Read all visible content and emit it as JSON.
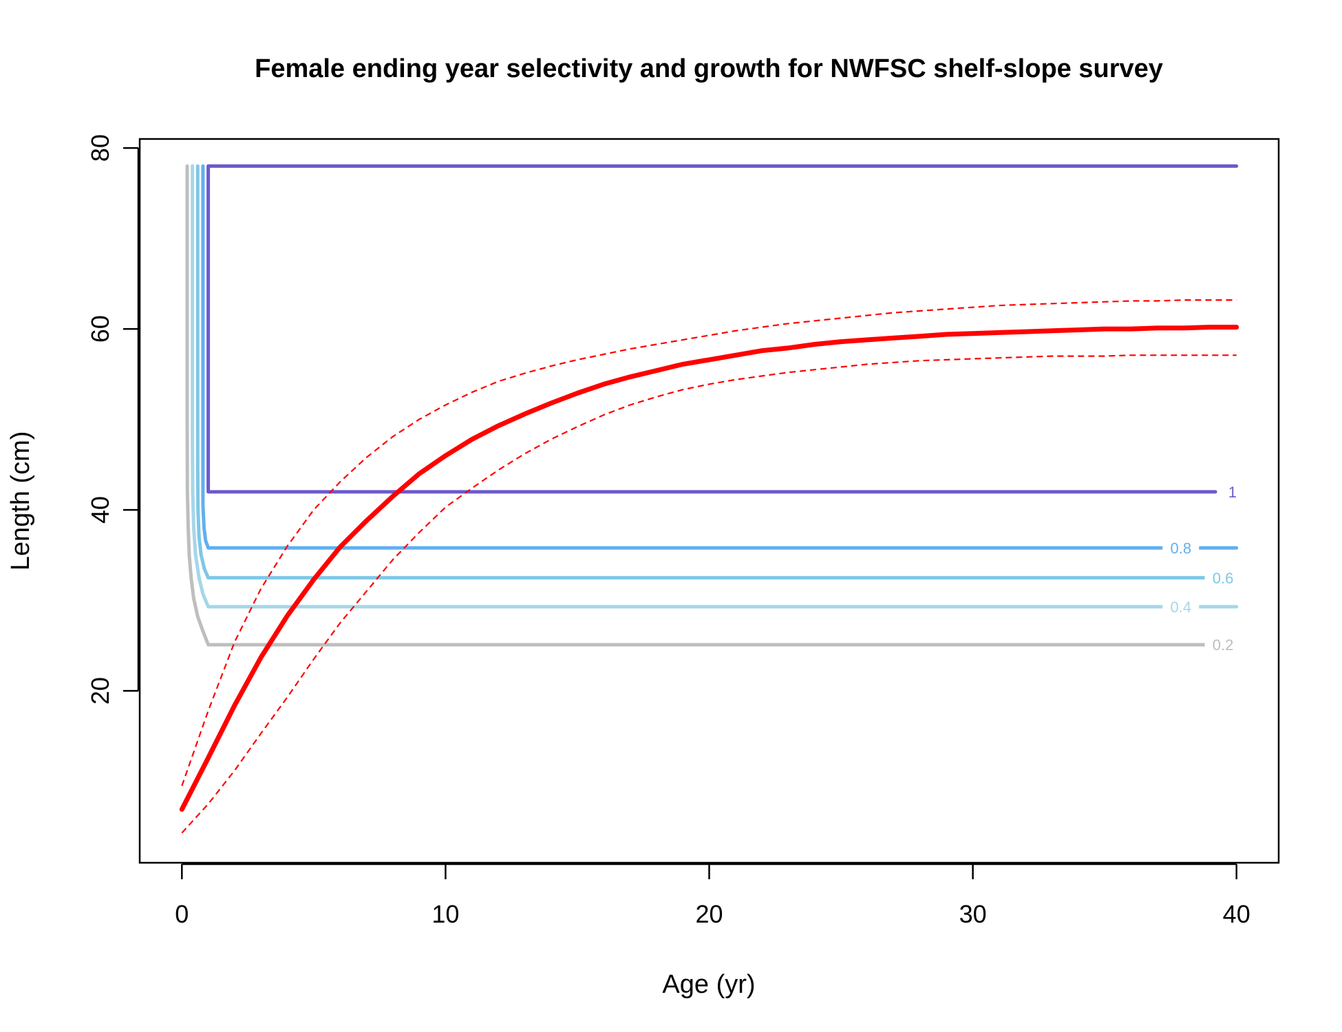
{
  "chart_data": {
    "type": "line",
    "title": "Female ending year selectivity and growth for NWFSC shelf-slope survey",
    "xlabel": "Age (yr)",
    "ylabel": "Length (cm)",
    "xlim": [
      -1.6,
      41.6
    ],
    "ylim": [
      1.0,
      81.0
    ],
    "xticks": [
      0,
      10,
      20,
      30,
      40
    ],
    "yticks": [
      20,
      40,
      60,
      80
    ],
    "xtick_labels": [
      "0",
      "10",
      "20",
      "30",
      "40"
    ],
    "ytick_labels": [
      "20",
      "40",
      "60",
      "80"
    ],
    "grid": false,
    "legend": "none",
    "selectivity_contours": [
      {
        "label": "0.2",
        "color": "#bebebe",
        "label_at": [
          38.9,
          25.1
        ],
        "points": [
          [
            38.9,
            25.1
          ],
          [
            1.0,
            25.1
          ],
          [
            0.8,
            26.6
          ],
          [
            0.6,
            28.2
          ],
          [
            0.45,
            30.2
          ],
          [
            0.35,
            32.5
          ],
          [
            0.28,
            35.0
          ],
          [
            0.24,
            38.0
          ],
          [
            0.21,
            42.0
          ],
          [
            0.2,
            50.0
          ],
          [
            0.2,
            78.0
          ]
        ]
      },
      {
        "label": "0.4",
        "color": "#a6d6e8",
        "label_at": [
          37.3,
          29.3
        ],
        "points": [
          [
            40.0,
            29.3
          ],
          [
            1.0,
            29.3
          ],
          [
            0.8,
            30.7
          ],
          [
            0.65,
            32.5
          ],
          [
            0.52,
            35.0
          ],
          [
            0.45,
            38.0
          ],
          [
            0.41,
            42.0
          ],
          [
            0.4,
            48.0
          ],
          [
            0.4,
            78.0
          ]
        ]
      },
      {
        "label": "0.6",
        "color": "#7ec8e6",
        "label_at": [
          38.9,
          32.5
        ],
        "points": [
          [
            38.9,
            32.5
          ],
          [
            1.0,
            32.5
          ],
          [
            0.85,
            33.5
          ],
          [
            0.73,
            35.0
          ],
          [
            0.65,
            37.0
          ],
          [
            0.61,
            40.0
          ],
          [
            0.6,
            45.0
          ],
          [
            0.6,
            78.0
          ]
        ]
      },
      {
        "label": "0.8",
        "color": "#62b0ee",
        "label_at": [
          37.3,
          35.8
        ],
        "points": [
          [
            40.0,
            35.8
          ],
          [
            1.0,
            35.8
          ],
          [
            0.9,
            36.6
          ],
          [
            0.84,
            38.0
          ],
          [
            0.8,
            40.5
          ],
          [
            0.8,
            78.0
          ]
        ]
      },
      {
        "label": "1",
        "color": "#6a5acd",
        "label_at": [
          39.6,
          42.0
        ],
        "points": [
          [
            39.2,
            42.0
          ],
          [
            1.0,
            42.0
          ],
          [
            1.0,
            78.0
          ],
          [
            40.0,
            78.0
          ]
        ]
      }
    ],
    "growth": {
      "color": "#ff0000",
      "mean": {
        "x": [
          0,
          1,
          2,
          3,
          4,
          5,
          6,
          7,
          8,
          9,
          10,
          11,
          12,
          13,
          14,
          15,
          16,
          17,
          18,
          19,
          20,
          21,
          22,
          23,
          24,
          25,
          26,
          27,
          28,
          29,
          30,
          31,
          32,
          33,
          34,
          35,
          36,
          37,
          38,
          39,
          40
        ],
        "y": [
          6.9,
          12.6,
          18.4,
          23.7,
          28.3,
          32.3,
          35.9,
          38.8,
          41.5,
          44.0,
          46.0,
          47.8,
          49.3,
          50.6,
          51.8,
          52.9,
          53.9,
          54.7,
          55.4,
          56.1,
          56.6,
          57.1,
          57.6,
          57.9,
          58.3,
          58.6,
          58.8,
          59.0,
          59.2,
          59.4,
          59.5,
          59.6,
          59.7,
          59.8,
          59.9,
          60.0,
          60.0,
          60.1,
          60.1,
          60.2,
          60.2
        ]
      },
      "upper": {
        "x": [
          0,
          1,
          2,
          3,
          4,
          5,
          6,
          7,
          8,
          9,
          10,
          11,
          12,
          13,
          14,
          15,
          16,
          17,
          18,
          19,
          20,
          21,
          22,
          23,
          24,
          25,
          26,
          27,
          28,
          29,
          30,
          31,
          32,
          33,
          34,
          35,
          36,
          37,
          38,
          39,
          40
        ],
        "y": [
          9.5,
          17.8,
          25.4,
          31.3,
          36.0,
          40.0,
          43.1,
          45.8,
          48.1,
          50.0,
          51.6,
          53.0,
          54.2,
          55.1,
          55.9,
          56.6,
          57.2,
          57.8,
          58.3,
          58.8,
          59.3,
          59.8,
          60.2,
          60.6,
          60.9,
          61.2,
          61.5,
          61.8,
          62.0,
          62.2,
          62.4,
          62.6,
          62.7,
          62.8,
          62.9,
          63.0,
          63.1,
          63.1,
          63.2,
          63.2,
          63.2
        ]
      },
      "lower": {
        "x": [
          0,
          1,
          2,
          3,
          4,
          5,
          6,
          7,
          8,
          9,
          10,
          11,
          12,
          13,
          14,
          15,
          16,
          17,
          18,
          19,
          20,
          21,
          22,
          23,
          24,
          25,
          26,
          27,
          28,
          29,
          30,
          31,
          32,
          33,
          34,
          35,
          36,
          37,
          38,
          39,
          40
        ],
        "y": [
          4.3,
          7.5,
          11.2,
          15.3,
          19.3,
          23.5,
          27.5,
          31.0,
          34.5,
          37.5,
          40.3,
          42.4,
          44.4,
          46.2,
          47.8,
          49.2,
          50.5,
          51.6,
          52.5,
          53.3,
          53.9,
          54.4,
          54.8,
          55.2,
          55.5,
          55.8,
          56.1,
          56.3,
          56.5,
          56.6,
          56.7,
          56.8,
          56.9,
          57.0,
          57.0,
          57.0,
          57.1,
          57.1,
          57.1,
          57.1,
          57.1
        ]
      }
    }
  }
}
